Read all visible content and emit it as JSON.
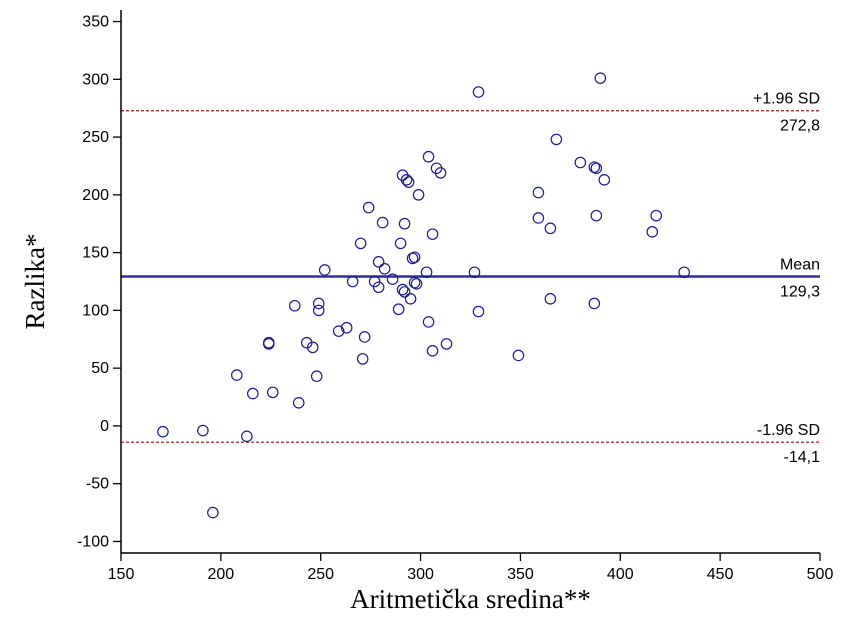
{
  "chart_data": {
    "type": "scatter",
    "xlabel": "Aritmetička sredina**",
    "ylabel": "Razlika*",
    "xlim": [
      150,
      500
    ],
    "ylim": [
      -110,
      360
    ],
    "xticks": [
      150,
      200,
      250,
      300,
      350,
      400,
      450,
      500
    ],
    "yticks": [
      -100,
      -50,
      0,
      50,
      100,
      150,
      200,
      250,
      300,
      350
    ],
    "xtick_labels": [
      "150",
      "200",
      "250",
      "300",
      "350",
      "400",
      "450",
      "500"
    ],
    "ytick_labels": [
      "-100",
      "-50",
      "0",
      "50",
      "100",
      "150",
      "200",
      "250",
      "300",
      "350"
    ],
    "grid": false,
    "marker": "open-circle",
    "point_color": "#1c1c8c",
    "reference_lines": [
      {
        "name": "upper_loa",
        "value": 272.8,
        "label_above": "+1.96 SD",
        "label_below": "272,8",
        "style": "dashed",
        "color": "#8b1a1a"
      },
      {
        "name": "mean",
        "value": 129.3,
        "label_above": "Mean",
        "label_below": "129,3",
        "style": "solid",
        "color": "#2e2e9c"
      },
      {
        "name": "lower_loa",
        "value": -14.1,
        "label_above": "-1.96 SD",
        "label_below": "-14,1",
        "style": "dashed",
        "color": "#8b1a1a"
      }
    ],
    "points": [
      {
        "x": 171,
        "y": -5
      },
      {
        "x": 191,
        "y": -4
      },
      {
        "x": 196,
        "y": -75
      },
      {
        "x": 208,
        "y": 44
      },
      {
        "x": 213,
        "y": -9
      },
      {
        "x": 216,
        "y": 28
      },
      {
        "x": 224,
        "y": 71
      },
      {
        "x": 224,
        "y": 72
      },
      {
        "x": 226,
        "y": 29
      },
      {
        "x": 237,
        "y": 104
      },
      {
        "x": 239,
        "y": 20
      },
      {
        "x": 243,
        "y": 72
      },
      {
        "x": 246,
        "y": 68
      },
      {
        "x": 248,
        "y": 43
      },
      {
        "x": 249,
        "y": 100
      },
      {
        "x": 249,
        "y": 106
      },
      {
        "x": 252,
        "y": 135
      },
      {
        "x": 259,
        "y": 82
      },
      {
        "x": 263,
        "y": 85
      },
      {
        "x": 266,
        "y": 125
      },
      {
        "x": 270,
        "y": 158
      },
      {
        "x": 271,
        "y": 58
      },
      {
        "x": 272,
        "y": 77
      },
      {
        "x": 274,
        "y": 189
      },
      {
        "x": 277,
        "y": 125
      },
      {
        "x": 279,
        "y": 142
      },
      {
        "x": 279,
        "y": 120
      },
      {
        "x": 281,
        "y": 176
      },
      {
        "x": 282,
        "y": 136
      },
      {
        "x": 286,
        "y": 127
      },
      {
        "x": 289,
        "y": 101
      },
      {
        "x": 290,
        "y": 158
      },
      {
        "x": 291,
        "y": 217
      },
      {
        "x": 291,
        "y": 118
      },
      {
        "x": 292,
        "y": 116
      },
      {
        "x": 292,
        "y": 175
      },
      {
        "x": 293,
        "y": 213
      },
      {
        "x": 294,
        "y": 211
      },
      {
        "x": 295,
        "y": 110
      },
      {
        "x": 296,
        "y": 145
      },
      {
        "x": 297,
        "y": 146
      },
      {
        "x": 297,
        "y": 124
      },
      {
        "x": 298,
        "y": 123
      },
      {
        "x": 299,
        "y": 200
      },
      {
        "x": 303,
        "y": 133
      },
      {
        "x": 304,
        "y": 233
      },
      {
        "x": 304,
        "y": 90
      },
      {
        "x": 306,
        "y": 166
      },
      {
        "x": 306,
        "y": 65
      },
      {
        "x": 308,
        "y": 223
      },
      {
        "x": 310,
        "y": 219
      },
      {
        "x": 313,
        "y": 71
      },
      {
        "x": 327,
        "y": 133
      },
      {
        "x": 329,
        "y": 289
      },
      {
        "x": 329,
        "y": 99
      },
      {
        "x": 349,
        "y": 61
      },
      {
        "x": 359,
        "y": 202
      },
      {
        "x": 359,
        "y": 180
      },
      {
        "x": 365,
        "y": 171
      },
      {
        "x": 365,
        "y": 110
      },
      {
        "x": 368,
        "y": 248
      },
      {
        "x": 380,
        "y": 228
      },
      {
        "x": 387,
        "y": 224
      },
      {
        "x": 387,
        "y": 106
      },
      {
        "x": 388,
        "y": 223
      },
      {
        "x": 388,
        "y": 182
      },
      {
        "x": 390,
        "y": 301
      },
      {
        "x": 392,
        "y": 213
      },
      {
        "x": 416,
        "y": 168
      },
      {
        "x": 418,
        "y": 182
      },
      {
        "x": 432,
        "y": 133
      }
    ]
  }
}
